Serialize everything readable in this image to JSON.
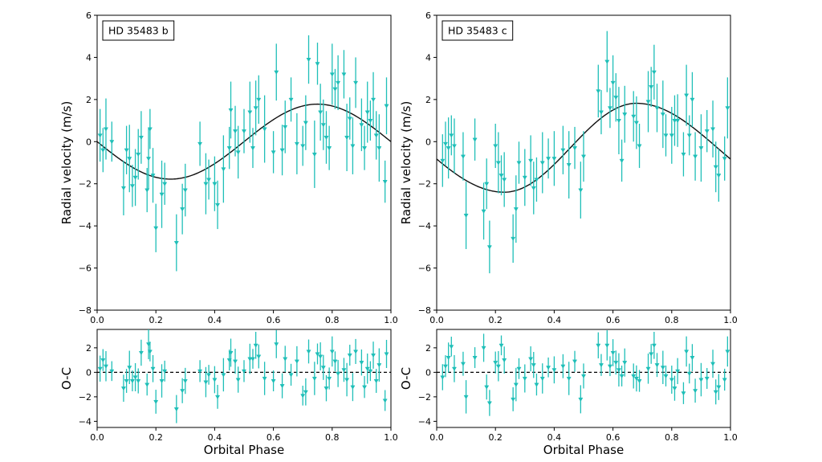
{
  "chart_data": [
    {
      "type": "scatter",
      "panel": "rv",
      "label": "HD 35483 b",
      "xlabel": "",
      "ylabel": "Radial velocity (m/s)",
      "xlim": [
        0.0,
        1.0
      ],
      "ylim": [
        -8,
        6
      ],
      "xticks": [
        "0.0",
        "0.2",
        "0.4",
        "0.6",
        "0.8",
        "1.0"
      ],
      "yticks": [
        "6",
        "4",
        "2",
        "0",
        "−2",
        "−4",
        "−6",
        "−8"
      ],
      "model": {
        "type": "sinusoid",
        "amplitude": 1.78,
        "min_phase": 0.25,
        "color": "#111111"
      },
      "points": [
        [
          0.01,
          0.3
        ],
        [
          0.02,
          -0.4
        ],
        [
          0.03,
          0.6
        ],
        [
          0.05,
          0.0
        ],
        [
          0.09,
          -2.2
        ],
        [
          0.1,
          -0.4
        ],
        [
          0.11,
          -0.8
        ],
        [
          0.12,
          -2.1
        ],
        [
          0.13,
          -1.7
        ],
        [
          0.14,
          -0.6
        ],
        [
          0.15,
          0.2
        ],
        [
          0.17,
          -2.3
        ],
        [
          0.175,
          -0.8
        ],
        [
          0.18,
          0.6
        ],
        [
          0.19,
          -1.6
        ],
        [
          0.2,
          -4.1
        ],
        [
          0.22,
          -2.5
        ],
        [
          0.23,
          -2.0
        ],
        [
          0.27,
          -4.8
        ],
        [
          0.29,
          -3.2
        ],
        [
          0.3,
          -2.3
        ],
        [
          0.35,
          -0.1
        ],
        [
          0.37,
          -2.0
        ],
        [
          0.38,
          -1.8
        ],
        [
          0.4,
          -2.0
        ],
        [
          0.41,
          -3.0
        ],
        [
          0.43,
          -1.3
        ],
        [
          0.45,
          -0.3
        ],
        [
          0.455,
          1.5
        ],
        [
          0.47,
          0.5
        ],
        [
          0.48,
          -0.5
        ],
        [
          0.5,
          0.5
        ],
        [
          0.52,
          1.4
        ],
        [
          0.53,
          -0.3
        ],
        [
          0.54,
          1.6
        ],
        [
          0.55,
          2.0
        ],
        [
          0.57,
          0.6
        ],
        [
          0.6,
          -0.5
        ],
        [
          0.61,
          3.3
        ],
        [
          0.63,
          -0.4
        ],
        [
          0.64,
          0.7
        ],
        [
          0.66,
          2.0
        ],
        [
          0.68,
          -0.1
        ],
        [
          0.7,
          -0.2
        ],
        [
          0.71,
          0.9
        ],
        [
          0.72,
          3.9
        ],
        [
          0.74,
          -0.6
        ],
        [
          0.75,
          3.7
        ],
        [
          0.76,
          1.4
        ],
        [
          0.77,
          0.8
        ],
        [
          0.78,
          0.2
        ],
        [
          0.79,
          -0.3
        ],
        [
          0.8,
          3.2
        ],
        [
          0.81,
          2.5
        ],
        [
          0.82,
          2.8
        ],
        [
          0.84,
          3.2
        ],
        [
          0.85,
          0.2
        ],
        [
          0.86,
          1.1
        ],
        [
          0.87,
          -0.2
        ],
        [
          0.88,
          2.8
        ],
        [
          0.9,
          0.8
        ],
        [
          0.91,
          -0.3
        ],
        [
          0.92,
          1.4
        ],
        [
          0.93,
          1.0
        ],
        [
          0.94,
          2.0
        ],
        [
          0.95,
          0.3
        ],
        [
          0.96,
          -0.3
        ],
        [
          0.98,
          -1.9
        ],
        [
          0.985,
          1.7
        ]
      ],
      "color": "#1fbfb8"
    },
    {
      "type": "scatter",
      "panel": "residuals",
      "xlabel": "Orbital Phase",
      "ylabel": "O-C",
      "xlim": [
        0.0,
        1.0
      ],
      "ylim": [
        -4.5,
        3.5
      ],
      "xticks": [
        "0.0",
        "0.2",
        "0.4",
        "0.6",
        "0.8",
        "1.0"
      ],
      "yticks": [
        "2",
        "0",
        "−2",
        "−4"
      ],
      "zero_line": "dashed",
      "points": [
        [
          0.01,
          0.3
        ],
        [
          0.02,
          1.0
        ],
        [
          0.03,
          0.5
        ],
        [
          0.05,
          0.1
        ],
        [
          0.09,
          -1.3
        ],
        [
          0.1,
          -0.7
        ],
        [
          0.11,
          0.4
        ],
        [
          0.12,
          -0.7
        ],
        [
          0.13,
          -0.4
        ],
        [
          0.14,
          -0.7
        ],
        [
          0.15,
          1.6
        ],
        [
          0.17,
          -1.0
        ],
        [
          0.175,
          2.3
        ],
        [
          0.18,
          1.7
        ],
        [
          0.19,
          0.3
        ],
        [
          0.2,
          -2.4
        ],
        [
          0.22,
          -0.7
        ],
        [
          0.23,
          0.1
        ],
        [
          0.27,
          -3.0
        ],
        [
          0.29,
          -1.5
        ],
        [
          0.3,
          -0.7
        ],
        [
          0.35,
          0.1
        ],
        [
          0.37,
          -0.8
        ],
        [
          0.38,
          -0.2
        ],
        [
          0.4,
          -0.6
        ],
        [
          0.41,
          -2.0
        ],
        [
          0.43,
          -0.2
        ],
        [
          0.45,
          1.0
        ],
        [
          0.455,
          1.6
        ],
        [
          0.47,
          0.9
        ],
        [
          0.48,
          -0.6
        ],
        [
          0.5,
          0.1
        ],
        [
          0.52,
          1.1
        ],
        [
          0.53,
          1.1
        ],
        [
          0.54,
          2.2
        ],
        [
          0.55,
          1.3
        ],
        [
          0.57,
          -0.5
        ],
        [
          0.6,
          -0.7
        ],
        [
          0.61,
          2.3
        ],
        [
          0.63,
          -1.1
        ],
        [
          0.64,
          1.1
        ],
        [
          0.66,
          -0.2
        ],
        [
          0.68,
          0.9
        ],
        [
          0.7,
          -1.9
        ],
        [
          0.71,
          -1.6
        ],
        [
          0.72,
          1.7
        ],
        [
          0.74,
          -0.5
        ],
        [
          0.75,
          1.5
        ],
        [
          0.76,
          1.3
        ],
        [
          0.77,
          0.4
        ],
        [
          0.78,
          -1.3
        ],
        [
          0.79,
          -0.5
        ],
        [
          0.8,
          1.7
        ],
        [
          0.81,
          0.9
        ],
        [
          0.82,
          -0.1
        ],
        [
          0.84,
          0.2
        ],
        [
          0.85,
          -0.6
        ],
        [
          0.86,
          1.4
        ],
        [
          0.87,
          -1.2
        ],
        [
          0.88,
          1.7
        ],
        [
          0.9,
          0.8
        ],
        [
          0.91,
          -1.2
        ],
        [
          0.92,
          0.3
        ],
        [
          0.93,
          0.1
        ],
        [
          0.94,
          1.4
        ],
        [
          0.95,
          -0.7
        ],
        [
          0.96,
          0.6
        ],
        [
          0.98,
          -2.3
        ],
        [
          0.985,
          1.5
        ]
      ],
      "color": "#1fbfb8"
    },
    {
      "type": "scatter",
      "panel": "rv",
      "label": "HD 35483 c",
      "xlabel": "",
      "ylabel": "Radial velocity (m/s)",
      "xlim": [
        0.0,
        1.0
      ],
      "ylim": [
        -8,
        6
      ],
      "xticks": [
        "0.0",
        "0.2",
        "0.4",
        "0.6",
        "0.8",
        "1.0"
      ],
      "yticks": [
        "6",
        "4",
        "2",
        "0",
        "−2",
        "−4",
        "−6",
        "−8"
      ],
      "model": {
        "type": "keplerian-like",
        "min": -2.4,
        "min_phase": 0.23,
        "max": 1.82,
        "max_phase": 0.68,
        "color": "#111111"
      },
      "points": [
        [
          0.02,
          -0.9
        ],
        [
          0.03,
          -0.1
        ],
        [
          0.04,
          -0.3
        ],
        [
          0.05,
          0.3
        ],
        [
          0.06,
          -0.2
        ],
        [
          0.09,
          -0.7
        ],
        [
          0.1,
          -3.5
        ],
        [
          0.13,
          0.1
        ],
        [
          0.16,
          -3.3
        ],
        [
          0.17,
          -2.0
        ],
        [
          0.18,
          -5.0
        ],
        [
          0.2,
          -0.2
        ],
        [
          0.21,
          -1.0
        ],
        [
          0.22,
          -1.6
        ],
        [
          0.23,
          -1.8
        ],
        [
          0.26,
          -4.6
        ],
        [
          0.27,
          -3.2
        ],
        [
          0.28,
          -1.0
        ],
        [
          0.3,
          -1.7
        ],
        [
          0.32,
          -0.9
        ],
        [
          0.33,
          -2.2
        ],
        [
          0.34,
          -1.8
        ],
        [
          0.36,
          -1.0
        ],
        [
          0.38,
          -0.8
        ],
        [
          0.4,
          -0.8
        ],
        [
          0.43,
          -0.4
        ],
        [
          0.45,
          -1.1
        ],
        [
          0.47,
          -0.3
        ],
        [
          0.49,
          -2.3
        ],
        [
          0.5,
          -0.7
        ],
        [
          0.55,
          2.4
        ],
        [
          0.56,
          1.4
        ],
        [
          0.58,
          3.8
        ],
        [
          0.59,
          1.6
        ],
        [
          0.6,
          2.8
        ],
        [
          0.61,
          2.1
        ],
        [
          0.62,
          1.0
        ],
        [
          0.63,
          -0.9
        ],
        [
          0.64,
          1.3
        ],
        [
          0.67,
          1.2
        ],
        [
          0.68,
          0.9
        ],
        [
          0.69,
          -0.2
        ],
        [
          0.72,
          1.9
        ],
        [
          0.73,
          2.6
        ],
        [
          0.74,
          3.3
        ],
        [
          0.75,
          1.6
        ],
        [
          0.77,
          1.3
        ],
        [
          0.78,
          0.3
        ],
        [
          0.8,
          0.3
        ],
        [
          0.81,
          1.0
        ],
        [
          0.82,
          1.0
        ],
        [
          0.84,
          -0.6
        ],
        [
          0.85,
          2.2
        ],
        [
          0.86,
          0.3
        ],
        [
          0.87,
          2.0
        ],
        [
          0.88,
          -0.7
        ],
        [
          0.9,
          -0.3
        ],
        [
          0.92,
          0.5
        ],
        [
          0.94,
          0.6
        ],
        [
          0.95,
          -1.2
        ],
        [
          0.96,
          -1.6
        ],
        [
          0.98,
          -0.8
        ],
        [
          0.99,
          1.6
        ]
      ],
      "color": "#1fbfb8"
    },
    {
      "type": "scatter",
      "panel": "residuals",
      "xlabel": "Orbital Phase",
      "ylabel": "O-C",
      "xlim": [
        0.0,
        1.0
      ],
      "ylim": [
        -4.5,
        3.5
      ],
      "xticks": [
        "0.0",
        "0.2",
        "0.4",
        "0.6",
        "0.8",
        "1.0"
      ],
      "yticks": [
        "2",
        "0",
        "−2",
        "−4"
      ],
      "zero_line": "dashed",
      "points": [
        [
          0.02,
          -0.4
        ],
        [
          0.03,
          0.5
        ],
        [
          0.04,
          1.2
        ],
        [
          0.05,
          2.1
        ],
        [
          0.06,
          0.3
        ],
        [
          0.09,
          0.7
        ],
        [
          0.1,
          -2.0
        ],
        [
          0.13,
          1.2
        ],
        [
          0.16,
          2.0
        ],
        [
          0.17,
          -1.2
        ],
        [
          0.18,
          -2.5
        ],
        [
          0.2,
          0.8
        ],
        [
          0.21,
          0.5
        ],
        [
          0.22,
          2.2
        ],
        [
          0.23,
          1.0
        ],
        [
          0.26,
          -2.2
        ],
        [
          0.27,
          -1.0
        ],
        [
          0.28,
          0.3
        ],
        [
          0.3,
          -0.5
        ],
        [
          0.32,
          1.1
        ],
        [
          0.33,
          0.6
        ],
        [
          0.34,
          -1.0
        ],
        [
          0.36,
          -0.5
        ],
        [
          0.38,
          0.4
        ],
        [
          0.4,
          0.2
        ],
        [
          0.43,
          0.5
        ],
        [
          0.45,
          -0.5
        ],
        [
          0.47,
          0.9
        ],
        [
          0.49,
          -2.2
        ],
        [
          0.5,
          -0.3
        ],
        [
          0.55,
          2.2
        ],
        [
          0.56,
          0.6
        ],
        [
          0.58,
          2.2
        ],
        [
          0.59,
          0.5
        ],
        [
          0.6,
          1.6
        ],
        [
          0.61,
          0.8
        ],
        [
          0.62,
          0.2
        ],
        [
          0.63,
          -0.3
        ],
        [
          0.64,
          0.8
        ],
        [
          0.67,
          -0.3
        ],
        [
          0.68,
          -0.5
        ],
        [
          0.69,
          -0.7
        ],
        [
          0.72,
          0.3
        ],
        [
          0.73,
          1.5
        ],
        [
          0.74,
          2.2
        ],
        [
          0.75,
          0.6
        ],
        [
          0.77,
          0.4
        ],
        [
          0.78,
          -0.3
        ],
        [
          0.8,
          -0.6
        ],
        [
          0.81,
          -1.3
        ],
        [
          0.82,
          0.1
        ],
        [
          0.84,
          -1.7
        ],
        [
          0.85,
          1.7
        ],
        [
          0.86,
          -0.1
        ],
        [
          0.87,
          1.2
        ],
        [
          0.88,
          -1.5
        ],
        [
          0.9,
          -0.6
        ],
        [
          0.92,
          -0.5
        ],
        [
          0.94,
          0.7
        ],
        [
          0.95,
          -1.6
        ],
        [
          0.96,
          -1.2
        ],
        [
          0.98,
          -0.6
        ],
        [
          0.99,
          1.7
        ]
      ],
      "color": "#1fbfb8"
    }
  ]
}
